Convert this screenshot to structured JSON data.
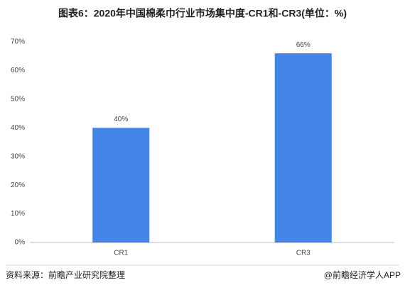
{
  "chart_data": {
    "type": "bar",
    "title": "图表6：2020年中国棉柔巾行业市场集中度-CR1和-CR3(单位：%)",
    "categories": [
      "CR1",
      "CR3"
    ],
    "values": [
      40,
      66
    ],
    "value_labels": [
      "40%",
      "66%"
    ],
    "color": "#4285e6",
    "ylim": [
      0,
      70
    ],
    "yticks": [
      {
        "value": 0,
        "label": "0%"
      },
      {
        "value": 10,
        "label": "10%"
      },
      {
        "value": 20,
        "label": "20%"
      },
      {
        "value": 30,
        "label": "30%"
      },
      {
        "value": 40,
        "label": "40%"
      },
      {
        "value": 50,
        "label": "50%"
      },
      {
        "value": 60,
        "label": "60%"
      },
      {
        "value": 70,
        "label": "70%"
      }
    ],
    "grid": false,
    "source": "资料来源：前瞻产业研究院整理",
    "brand": "@前瞻经济学人APP"
  }
}
